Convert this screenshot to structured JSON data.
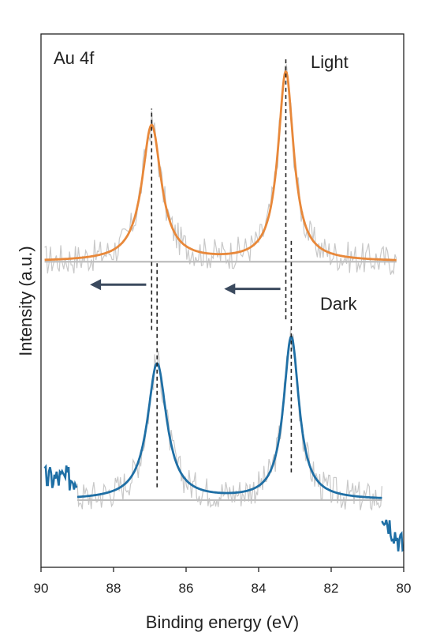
{
  "chart_data": {
    "type": "line",
    "title": "",
    "xlabel": "Binding energy (eV)",
    "ylabel": "Intensity (a.u.)",
    "xlim": [
      90,
      80
    ],
    "ylim": [
      0,
      1
    ],
    "x_reversed": true,
    "xticks": [
      90,
      88,
      86,
      84,
      82,
      80
    ],
    "tick_labels": [
      "90",
      "88",
      "86",
      "84",
      "82",
      "80"
    ],
    "grid": false,
    "annotations": {
      "element_label": "Au 4f",
      "light_label": "Light",
      "dark_label": "Dark"
    },
    "series": [
      {
        "role": "light-fit",
        "color": "#E8883A",
        "baseline": 0.573,
        "peaks": [
          {
            "center": 86.95,
            "height": 0.255,
            "width": 0.32
          },
          {
            "center": 83.25,
            "height": 0.355,
            "width": 0.26
          }
        ],
        "x_range": [
          89.9,
          80.2
        ]
      },
      {
        "role": "dark-fit",
        "color": "#1F6FA5",
        "baseline": 0.126,
        "peaks": [
          {
            "center": 86.8,
            "height": 0.255,
            "width": 0.32
          },
          {
            "center": 83.1,
            "height": 0.305,
            "width": 0.26
          }
        ],
        "x_range": [
          89.0,
          80.6
        ]
      }
    ],
    "raw_data_color": "#c8c8c8",
    "baseline_color": "#bdbdbd",
    "reference_lines": [
      {
        "x": 86.95,
        "y_range": [
          0.445,
          0.86
        ]
      },
      {
        "x": 86.8,
        "y_range": [
          0.15,
          0.57
        ]
      },
      {
        "x": 83.25,
        "y_range": [
          0.465,
          0.957
        ]
      },
      {
        "x": 83.1,
        "y_range": [
          0.178,
          0.615
        ]
      }
    ],
    "shift_arrows": [
      {
        "from": 87.1,
        "to": 88.65,
        "y": 0.53
      },
      {
        "from": 83.4,
        "to": 84.95,
        "y": 0.522
      }
    ],
    "arrow_color": "#3b4a5e"
  }
}
